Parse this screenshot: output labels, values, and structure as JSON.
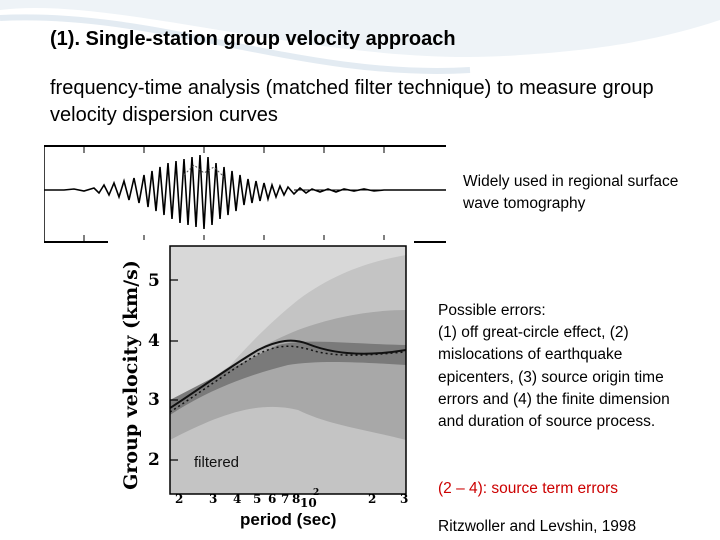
{
  "slide": {
    "title": "(1). Single-station group velocity approach",
    "subtitle": "frequency-time analysis (matched filter technique) to measure group velocity dispersion curves",
    "note_regional": "Widely used in regional surface wave tomography",
    "errors_heading": "Possible errors:",
    "errors_body": "(1) off great-circle effect, (2) mislocations of earthquake epicenters, (3) source origin time errors and (4) the finite dimension and duration of source process.",
    "source_term": "(2 – 4): source term errors",
    "citation": "Ritzwoller and Levshin, 1998"
  },
  "figure": {
    "y_axis_label": "Group velocity (km/s)",
    "y_ticks": [
      "5",
      "4",
      "3",
      "2"
    ],
    "x_axis_label": "period (sec)",
    "x_ticks": [
      "2",
      "3",
      "4",
      "5",
      "6",
      "7",
      "8",
      "10",
      "2",
      "3"
    ],
    "x_exponent": "2",
    "panel_label": "filtered"
  },
  "colors": {
    "title": "#000000",
    "accent_red": "#cc0000",
    "swoosh": "#dde8f0"
  }
}
